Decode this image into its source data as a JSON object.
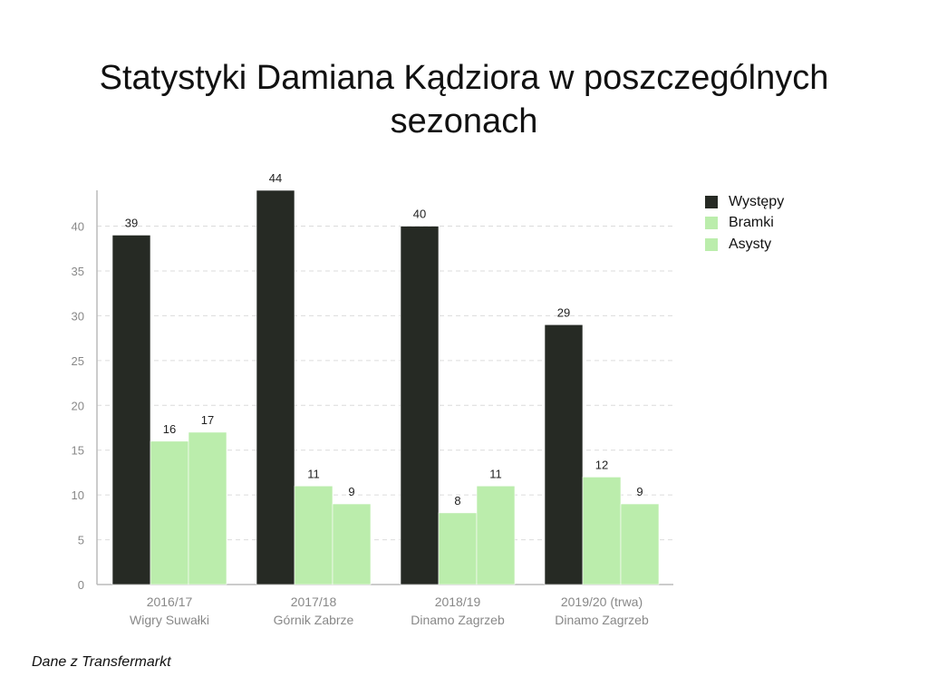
{
  "chart_data": {
    "type": "bar",
    "title": "Statystyki Damiana Kądziora w poszczególnych sezonach",
    "categories": [
      [
        "2016/17",
        "Wigry Suwałki"
      ],
      [
        "2017/18",
        "Górnik Zabrze"
      ],
      [
        "2018/19",
        "Dinamo Zagrzeb"
      ],
      [
        "2019/20 (trwa)",
        "Dinamo Zagrzeb"
      ]
    ],
    "series": [
      {
        "name": "Występy",
        "color": "#262a24",
        "values": [
          39,
          44,
          40,
          29
        ]
      },
      {
        "name": "Bramki",
        "color": "#bbedac",
        "values": [
          16,
          11,
          8,
          12
        ]
      },
      {
        "name": "Asysty",
        "color": "#bbedac",
        "values": [
          17,
          9,
          11,
          9
        ]
      }
    ],
    "ylim": [
      0,
      44
    ],
    "yticks": [
      0,
      5,
      10,
      15,
      20,
      25,
      30,
      35,
      40
    ],
    "grid": true,
    "legend_position": "right"
  },
  "note": "Dane z Transfermarkt"
}
